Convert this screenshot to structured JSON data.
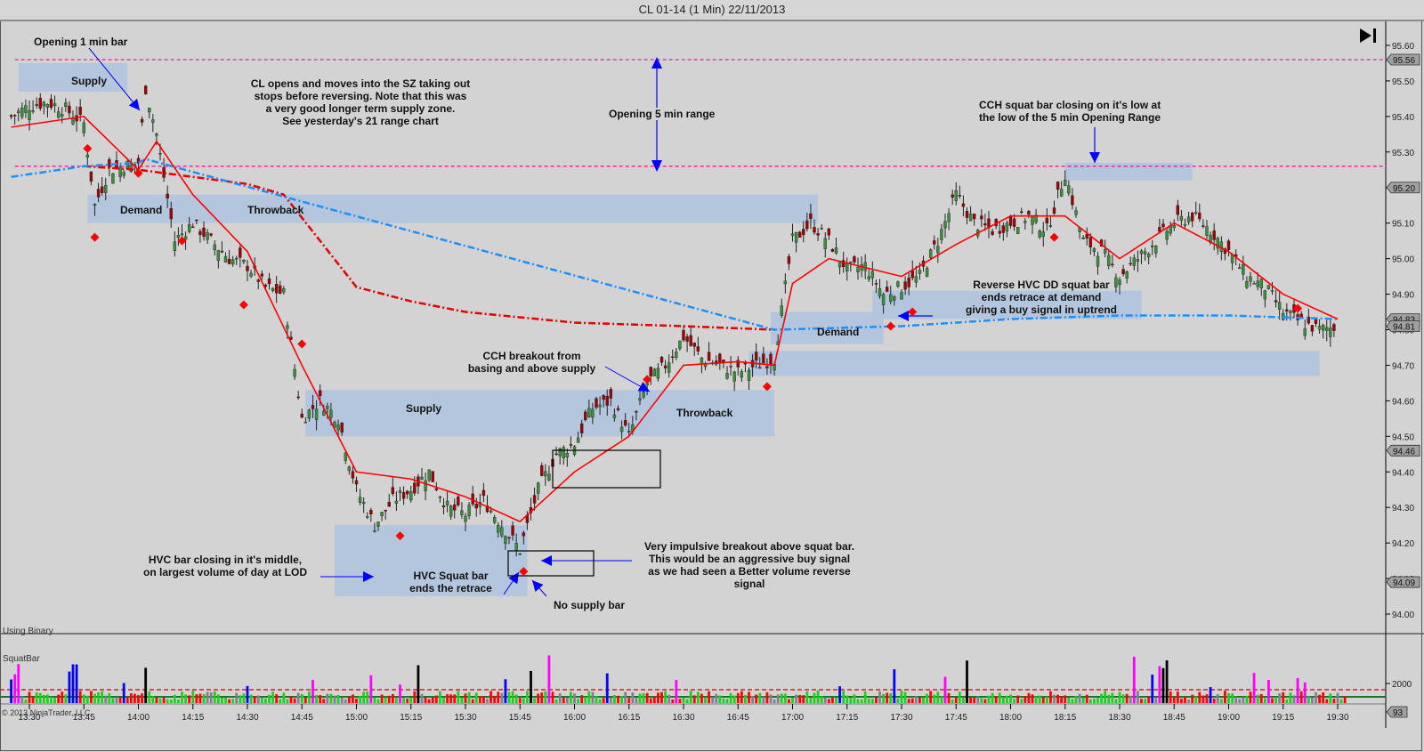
{
  "window": {
    "title": "CL 01-14 (1 Min)  22/11/2013"
  },
  "price_panel": {
    "indicator_label": "Using Binary",
    "scroll_to_end_icon": "skip-to-end-icon"
  },
  "volume_panel": {
    "title": "SquatBar",
    "copyright": "© 2013 NinjaTrader, LLC"
  },
  "colors": {
    "background": "#d3d3d3",
    "zone_fill": "#b0c4de",
    "opening_range_line": "#ff1493",
    "ema_line": "#ff0000",
    "vwap_red_dashdot": "#e00000",
    "vwap_blue_dashdot": "#1e90ff",
    "annotation_arrow": "#0000ff",
    "up_candle": "#3a8f3a",
    "down_candle": "#a00000",
    "vol_green": "#22cc22",
    "vol_red": "#ff0000",
    "vol_magenta": "#ff00ff",
    "vol_blue": "#0000ff",
    "vol_black": "#000000",
    "vol_gray": "#808090",
    "vol_white": "#ffffff"
  },
  "annotations": {
    "opening_1min_bar": "Opening 1 min bar",
    "supply_top": "Supply",
    "cl_opens_1": "CL opens and moves into the SZ taking out",
    "cl_opens_2": "stops before reversing. Note that this was",
    "cl_opens_3": "a very good longer term supply zone.",
    "cl_opens_4": "See yesterday's 21 range chart",
    "opening_5min_range": "Opening 5 min range",
    "cch_squat_1": "CCH squat bar closing on it's low at",
    "cch_squat_2": "the low of the 5 min Opening Range",
    "demand_left": "Demand",
    "throwback_top": "Throwback",
    "reverse_hvc_1": "Reverse HVC DD squat bar",
    "reverse_hvc_2": "ends retrace at demand",
    "reverse_hvc_3": "giving a buy signal in uptrend",
    "demand_right": "Demand",
    "cch_breakout_1": "CCH breakout from",
    "cch_breakout_2": "basing and above supply",
    "supply_mid": "Supply",
    "throwback_mid": "Throwback",
    "hvc_bar_1": "HVC bar closing in it's middle,",
    "hvc_bar_2": "on largest volume of day at LOD",
    "hvc_squat_1": "HVC Squat bar",
    "hvc_squat_2": "ends the retrace",
    "no_supply": "No supply bar",
    "impulsive_1": "Very impulsive breakout above squat bar.",
    "impulsive_2": "This would be an aggressive buy signal",
    "impulsive_3": "as we had seen a Better volume reverse",
    "impulsive_4": "signal"
  },
  "chart_data": {
    "type": "candlestick",
    "title": "CL 01-14 (1 Min)  22/11/2013",
    "xlabel": "",
    "ylabel": "",
    "ylim": [
      93.95,
      95.65
    ],
    "grid": false,
    "price_ticks": [
      "95.60",
      "95.50",
      "95.40",
      "95.30",
      "95.20",
      "95.10",
      "95.00",
      "94.90",
      "94.80",
      "94.70",
      "94.60",
      "94.50",
      "94.40",
      "94.30",
      "94.20",
      "94.10",
      "94.00"
    ],
    "price_markers": [
      {
        "label": "95.56",
        "value": 95.56
      },
      {
        "label": "95.20",
        "value": 95.2
      },
      {
        "label": "94.83",
        "value": 94.83
      },
      {
        "label": "94.81",
        "value": 94.81
      },
      {
        "label": "94.46",
        "value": 94.46
      },
      {
        "label": "94.09",
        "value": 94.09
      }
    ],
    "time_ticks": [
      "13:30",
      "13:45",
      "14:00",
      "14:15",
      "14:30",
      "14:45",
      "15:00",
      "15:15",
      "15:30",
      "15:45",
      "16:00",
      "16:15",
      "16:30",
      "16:45",
      "17:00",
      "17:15",
      "17:30",
      "17:45",
      "18:00",
      "18:15",
      "18:30",
      "18:45",
      "19:00",
      "19:15",
      "19:30"
    ],
    "opening_range": {
      "high": 95.56,
      "low": 95.26
    },
    "zones": [
      {
        "label": "Supply",
        "type": "supply",
        "t_start": "13:27",
        "t_end": "13:57",
        "high": 95.55,
        "low": 95.47
      },
      {
        "label": "Demand / Throwback",
        "type": "demand",
        "t_start": "13:46",
        "t_end": "17:07",
        "high": 95.18,
        "low": 95.1
      },
      {
        "label": "Supply / Throwback",
        "type": "supply",
        "t_start": "14:46",
        "t_end": "16:55",
        "high": 94.63,
        "low": 94.5
      },
      {
        "label": "Demand (LOD)",
        "type": "demand",
        "t_start": "14:54",
        "t_end": "15:47",
        "high": 94.25,
        "low": 94.05
      },
      {
        "label": "Demand",
        "type": "demand",
        "t_start": "16:54",
        "t_end": "17:25",
        "high": 94.85,
        "low": 94.76
      },
      {
        "label": "Demand (retrace)",
        "type": "demand",
        "t_start": "17:22",
        "t_end": "18:36",
        "high": 94.91,
        "low": 94.83
      },
      {
        "label": "Demand (base)",
        "type": "demand",
        "t_start": "16:48",
        "t_end": "19:25",
        "high": 94.74,
        "low": 94.67
      },
      {
        "label": "OR low zone",
        "type": "supply",
        "t_start": "18:15",
        "t_end": "18:50",
        "high": 95.27,
        "low": 95.22
      }
    ],
    "series": [
      {
        "name": "Close (approx)",
        "x": [
          "13:25",
          "13:30",
          "13:35",
          "13:40",
          "13:45",
          "13:48",
          "13:52",
          "14:00",
          "14:02",
          "14:05",
          "14:10",
          "14:15",
          "14:20",
          "14:25",
          "14:30",
          "14:35",
          "14:40",
          "14:45",
          "14:50",
          "14:55",
          "15:00",
          "15:05",
          "15:10",
          "15:15",
          "15:20",
          "15:25",
          "15:30",
          "15:35",
          "15:40",
          "15:45",
          "15:50",
          "15:55",
          "16:00",
          "16:05",
          "16:10",
          "16:15",
          "16:20",
          "16:25",
          "16:30",
          "16:35",
          "16:40",
          "16:45",
          "16:50",
          "16:55",
          "17:00",
          "17:05",
          "17:10",
          "17:15",
          "17:20",
          "17:25",
          "17:30",
          "17:35",
          "17:40",
          "17:45",
          "17:50",
          "17:55",
          "18:00",
          "18:05",
          "18:10",
          "18:15",
          "18:20",
          "18:25",
          "18:30",
          "18:35",
          "18:40",
          "18:45",
          "18:50",
          "18:55",
          "19:00",
          "19:05",
          "19:10",
          "19:15",
          "19:20",
          "19:25",
          "19:30"
        ],
        "values": [
          95.4,
          95.43,
          95.44,
          95.42,
          95.38,
          95.15,
          95.25,
          95.27,
          95.48,
          95.35,
          95.05,
          95.1,
          95.05,
          95.0,
          94.98,
          94.92,
          94.9,
          94.55,
          94.6,
          94.55,
          94.35,
          94.25,
          94.32,
          94.35,
          94.4,
          94.3,
          94.28,
          94.32,
          94.25,
          94.18,
          94.35,
          94.45,
          94.48,
          94.58,
          94.6,
          94.5,
          94.65,
          94.7,
          94.78,
          94.72,
          94.7,
          94.68,
          94.7,
          94.72,
          95.05,
          95.1,
          95.05,
          94.97,
          94.98,
          94.9,
          94.92,
          94.95,
          95.05,
          95.18,
          95.1,
          95.08,
          95.1,
          95.12,
          95.08,
          95.24,
          95.05,
          95.02,
          94.95,
          95.0,
          95.05,
          95.1,
          95.12,
          95.08,
          95.02,
          94.95,
          94.92,
          94.85,
          94.82,
          94.8,
          94.81
        ]
      },
      {
        "name": "EMA (red)",
        "x": [
          "13:25",
          "13:45",
          "14:00",
          "14:05",
          "14:15",
          "14:30",
          "14:45",
          "15:00",
          "15:15",
          "15:30",
          "15:45",
          "16:00",
          "16:15",
          "16:30",
          "16:45",
          "16:55",
          "17:00",
          "17:10",
          "17:30",
          "17:45",
          "18:00",
          "18:15",
          "18:30",
          "18:45",
          "19:00",
          "19:15",
          "19:30"
        ],
        "values": [
          95.37,
          95.4,
          95.25,
          95.33,
          95.18,
          95.02,
          94.7,
          94.4,
          94.38,
          94.33,
          94.26,
          94.4,
          94.5,
          94.7,
          94.71,
          94.7,
          94.93,
          95.0,
          94.95,
          95.04,
          95.12,
          95.12,
          95.0,
          95.1,
          95.02,
          94.9,
          94.83
        ]
      },
      {
        "name": "VWAP red dash-dot",
        "x": [
          "13:45",
          "14:00",
          "14:15",
          "14:30",
          "14:40",
          "14:50",
          "15:00",
          "15:15",
          "15:30",
          "16:00",
          "16:30",
          "16:55"
        ],
        "values": [
          95.26,
          95.25,
          95.23,
          95.21,
          95.18,
          95.05,
          94.92,
          94.88,
          94.85,
          94.82,
          94.81,
          94.8
        ]
      },
      {
        "name": "VWAP blue dash-dot",
        "x": [
          "13:25",
          "13:45",
          "14:00",
          "14:02",
          "16:55",
          "17:30",
          "18:00",
          "18:30",
          "19:00",
          "19:30"
        ],
        "values": [
          95.23,
          95.26,
          95.27,
          95.28,
          94.8,
          94.81,
          94.83,
          94.84,
          94.84,
          94.83
        ]
      }
    ],
    "volume": {
      "title": "SquatBar",
      "ticks": [
        "2000",
        "93"
      ],
      "last_value": 93,
      "reference_lines": [
        {
          "style": "dashed",
          "color": "#b03030",
          "value": 1600
        },
        {
          "style": "solid",
          "color": "#1a7a1a",
          "value": 600
        }
      ]
    }
  }
}
